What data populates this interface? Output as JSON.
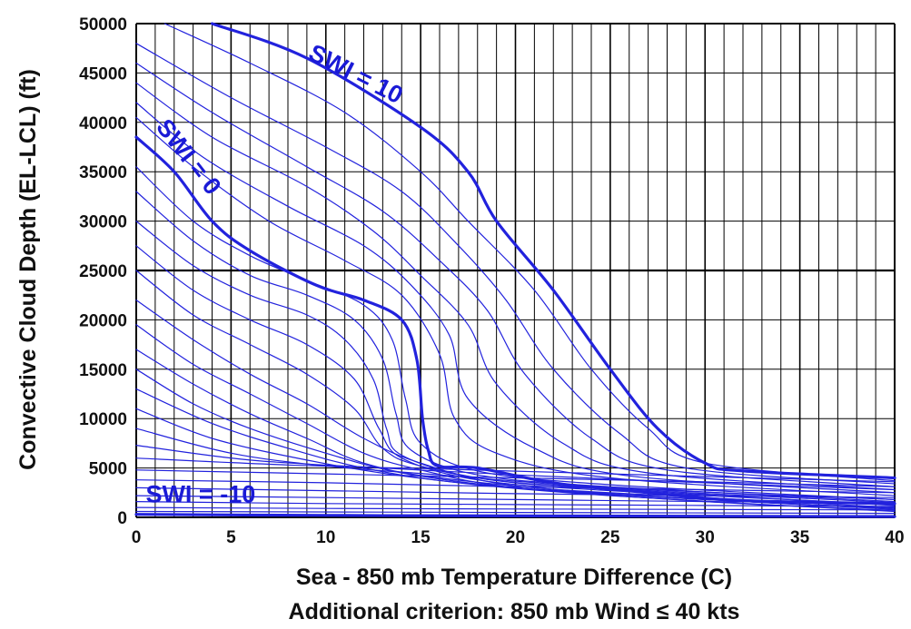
{
  "chart_data": {
    "type": "line",
    "xlabel": "Sea - 850 mb Temperature Difference (C)",
    "subtitle": "Additional criterion: 850 mb Wind ≤ 40 kts",
    "ylabel": "Convective Cloud Depth (EL-LCL) (ft)",
    "xlim": [
      0,
      40
    ],
    "ylim": [
      0,
      50000
    ],
    "x_ticks": [
      0,
      5,
      10,
      15,
      20,
      25,
      30,
      35,
      40
    ],
    "y_ticks": [
      0,
      5000,
      10000,
      15000,
      20000,
      25000,
      30000,
      35000,
      40000,
      45000,
      50000
    ],
    "grid": {
      "minor_x_step": 1,
      "minor_y_step": 5000,
      "major_x_step": 5,
      "major_y_step": 25000
    },
    "line_color": "#2222dd",
    "annotations": [
      {
        "text": "SWI = 10",
        "x": 9,
        "y": 46500,
        "angle": 27
      },
      {
        "text": "SWI = 0",
        "x": 1.0,
        "y": 39500,
        "angle": 52
      },
      {
        "text": "SWI = -10",
        "x": 0.5,
        "y": 1500,
        "angle": 0
      }
    ],
    "series": [
      {
        "label": "SWI = 10",
        "bold": true,
        "points": [
          [
            4,
            50000
          ],
          [
            9,
            46500
          ],
          [
            15,
            39500
          ],
          [
            17.5,
            35000
          ],
          [
            19,
            30000
          ],
          [
            22,
            23000
          ],
          [
            25,
            15000
          ],
          [
            27.5,
            9000
          ],
          [
            30,
            5500
          ],
          [
            32,
            4700
          ],
          [
            40,
            4000
          ]
        ]
      },
      {
        "label": "SWI = 0",
        "bold": true,
        "points": [
          [
            0,
            38500
          ],
          [
            2,
            35000
          ],
          [
            4,
            30000
          ],
          [
            6,
            27000
          ],
          [
            9.5,
            23500
          ],
          [
            12,
            22000
          ],
          [
            14,
            20000
          ],
          [
            14.8,
            16000
          ],
          [
            15.1,
            10000
          ],
          [
            15.4,
            6800
          ],
          [
            15.9,
            5200
          ],
          [
            18,
            5000
          ],
          [
            22,
            3500
          ],
          [
            27,
            2500
          ],
          [
            32,
            1700
          ],
          [
            40,
            1400
          ]
        ]
      },
      {
        "label": "SWI = -10",
        "bold": true,
        "points": [
          [
            0,
            300
          ],
          [
            10,
            200
          ],
          [
            20,
            150
          ],
          [
            40,
            80
          ]
        ]
      },
      {
        "points": [
          [
            1.5,
            50000
          ],
          [
            6,
            46000
          ],
          [
            11,
            41000
          ],
          [
            15,
            35000
          ],
          [
            17.5,
            30000
          ],
          [
            21,
            23000
          ],
          [
            24,
            15000
          ],
          [
            27,
            9000
          ],
          [
            30,
            5500
          ],
          [
            40,
            3700
          ]
        ]
      },
      {
        "points": [
          [
            0,
            48000
          ],
          [
            5,
            42500
          ],
          [
            10,
            37500
          ],
          [
            14,
            33000
          ],
          [
            17,
            27500
          ],
          [
            19.5,
            22000
          ],
          [
            22,
            15000
          ],
          [
            25.5,
            8500
          ],
          [
            29,
            5000
          ],
          [
            40,
            3400
          ]
        ]
      },
      {
        "points": [
          [
            0,
            46000
          ],
          [
            4,
            41000
          ],
          [
            9,
            35500
          ],
          [
            13,
            31000
          ],
          [
            16,
            26000
          ],
          [
            18.5,
            21000
          ],
          [
            20.5,
            14500
          ],
          [
            24,
            8000
          ],
          [
            28,
            4800
          ],
          [
            40,
            3100
          ]
        ]
      },
      {
        "points": [
          [
            0,
            44000
          ],
          [
            4,
            38500
          ],
          [
            9,
            33500
          ],
          [
            12.5,
            29000
          ],
          [
            15,
            24500
          ],
          [
            17.5,
            19500
          ],
          [
            19,
            13500
          ],
          [
            22.5,
            7500
          ],
          [
            27,
            4500
          ],
          [
            40,
            2800
          ]
        ]
      },
      {
        "points": [
          [
            0,
            42000
          ],
          [
            3.5,
            36500
          ],
          [
            8,
            31500
          ],
          [
            12,
            27500
          ],
          [
            14.5,
            23500
          ],
          [
            16.5,
            18500
          ],
          [
            17.5,
            12000
          ],
          [
            21,
            7000
          ],
          [
            26,
            4200
          ],
          [
            40,
            2500
          ]
        ]
      },
      {
        "points": [
          [
            0,
            40500
          ],
          [
            3,
            35500
          ],
          [
            7,
            30000
          ],
          [
            11,
            26000
          ],
          [
            14,
            22500
          ],
          [
            16,
            16500
          ],
          [
            16.8,
            10000
          ],
          [
            19,
            6500
          ],
          [
            25,
            4000
          ],
          [
            40,
            2200
          ]
        ]
      },
      {
        "points": [
          [
            0,
            35500
          ],
          [
            3,
            30000
          ],
          [
            6,
            26500
          ],
          [
            9,
            24000
          ],
          [
            12,
            21500
          ],
          [
            13.5,
            18000
          ],
          [
            14.2,
            12000
          ],
          [
            15,
            7500
          ],
          [
            18,
            4700
          ],
          [
            25,
            3300
          ],
          [
            40,
            1800
          ]
        ]
      },
      {
        "points": [
          [
            0,
            33000
          ],
          [
            3,
            28000
          ],
          [
            6,
            24500
          ],
          [
            9,
            22500
          ],
          [
            11.5,
            20000
          ],
          [
            13,
            16000
          ],
          [
            13.7,
            10500
          ],
          [
            14.5,
            6800
          ],
          [
            18,
            4300
          ],
          [
            25,
            3100
          ],
          [
            40,
            1600
          ]
        ]
      },
      {
        "points": [
          [
            0,
            30000
          ],
          [
            3,
            25500
          ],
          [
            6,
            22500
          ],
          [
            9,
            20500
          ],
          [
            11,
            18000
          ],
          [
            12.5,
            14000
          ],
          [
            13.2,
            9000
          ],
          [
            14,
            6300
          ],
          [
            18,
            4000
          ],
          [
            25,
            2900
          ],
          [
            40,
            1500
          ]
        ]
      },
      {
        "points": [
          [
            0,
            27500
          ],
          [
            3,
            23000
          ],
          [
            6,
            20000
          ],
          [
            9,
            17500
          ],
          [
            11.5,
            14000
          ],
          [
            12.8,
            9000
          ],
          [
            14,
            6000
          ],
          [
            18,
            3800
          ],
          [
            25,
            2700
          ],
          [
            40,
            1300
          ]
        ]
      },
      {
        "points": [
          [
            0,
            25000
          ],
          [
            3,
            20500
          ],
          [
            6,
            17500
          ],
          [
            9,
            14500
          ],
          [
            11.5,
            11000
          ],
          [
            13,
            7000
          ],
          [
            15,
            5200
          ],
          [
            20,
            3500
          ],
          [
            30,
            2300
          ],
          [
            40,
            1200
          ]
        ]
      },
      {
        "points": [
          [
            0,
            22000
          ],
          [
            3,
            18000
          ],
          [
            6,
            14500
          ],
          [
            9,
            11500
          ],
          [
            12,
            8000
          ],
          [
            15,
            5500
          ],
          [
            20,
            3200
          ],
          [
            30,
            2000
          ],
          [
            40,
            1000
          ]
        ]
      },
      {
        "points": [
          [
            0,
            19500
          ],
          [
            3,
            15500
          ],
          [
            6,
            12500
          ],
          [
            9,
            9500
          ],
          [
            12,
            6500
          ],
          [
            15,
            4800
          ],
          [
            20,
            3000
          ],
          [
            30,
            1800
          ],
          [
            40,
            900
          ]
        ]
      },
      {
        "points": [
          [
            0,
            17000
          ],
          [
            3,
            13500
          ],
          [
            6,
            10500
          ],
          [
            9,
            8000
          ],
          [
            12,
            5500
          ],
          [
            16,
            4000
          ],
          [
            25,
            2400
          ],
          [
            40,
            800
          ]
        ]
      },
      {
        "points": [
          [
            0,
            15000
          ],
          [
            3,
            11500
          ],
          [
            6,
            9000
          ],
          [
            10,
            6500
          ],
          [
            14,
            4500
          ],
          [
            20,
            3000
          ],
          [
            30,
            1600
          ],
          [
            40,
            700
          ]
        ]
      },
      {
        "points": [
          [
            0,
            13000
          ],
          [
            4,
            9500
          ],
          [
            8,
            7000
          ],
          [
            12,
            5000
          ],
          [
            17,
            3500
          ],
          [
            25,
            2200
          ],
          [
            40,
            600
          ]
        ]
      },
      {
        "points": [
          [
            0,
            11000
          ],
          [
            4,
            8000
          ],
          [
            9,
            5800
          ],
          [
            14,
            4200
          ],
          [
            20,
            3000
          ],
          [
            30,
            1800
          ],
          [
            40,
            900
          ]
        ]
      },
      {
        "points": [
          [
            0,
            9000
          ],
          [
            5,
            6500
          ],
          [
            10,
            5200
          ],
          [
            16,
            4300
          ],
          [
            25,
            3000
          ],
          [
            40,
            1800
          ]
        ]
      },
      {
        "points": [
          [
            0,
            7300
          ],
          [
            6,
            5800
          ],
          [
            13,
            5000
          ],
          [
            20,
            4300
          ],
          [
            30,
            3500
          ],
          [
            40,
            2800
          ]
        ]
      },
      {
        "points": [
          [
            0,
            6000
          ],
          [
            8,
            5300
          ],
          [
            16,
            4900
          ],
          [
            25,
            4400
          ],
          [
            40,
            3600
          ]
        ]
      },
      {
        "points": [
          [
            0,
            4800
          ],
          [
            10,
            4400
          ],
          [
            20,
            4000
          ],
          [
            30,
            3600
          ],
          [
            40,
            3100
          ]
        ]
      },
      {
        "points": [
          [
            0,
            3800
          ],
          [
            10,
            3500
          ],
          [
            20,
            3100
          ],
          [
            30,
            2800
          ],
          [
            40,
            2500
          ]
        ]
      },
      {
        "points": [
          [
            0,
            3000
          ],
          [
            10,
            2700
          ],
          [
            20,
            2400
          ],
          [
            30,
            2200
          ],
          [
            40,
            2000
          ]
        ]
      },
      {
        "points": [
          [
            0,
            2200
          ],
          [
            10,
            2000
          ],
          [
            20,
            1800
          ],
          [
            30,
            1600
          ],
          [
            40,
            1500
          ]
        ]
      },
      {
        "points": [
          [
            0,
            1600
          ],
          [
            10,
            1400
          ],
          [
            20,
            1300
          ],
          [
            30,
            1200
          ],
          [
            40,
            1100
          ]
        ]
      },
      {
        "points": [
          [
            0,
            1000
          ],
          [
            10,
            900
          ],
          [
            20,
            850
          ],
          [
            30,
            800
          ],
          [
            40,
            750
          ]
        ]
      },
      {
        "points": [
          [
            0,
            600
          ],
          [
            20,
            500
          ],
          [
            40,
            400
          ]
        ]
      }
    ]
  }
}
